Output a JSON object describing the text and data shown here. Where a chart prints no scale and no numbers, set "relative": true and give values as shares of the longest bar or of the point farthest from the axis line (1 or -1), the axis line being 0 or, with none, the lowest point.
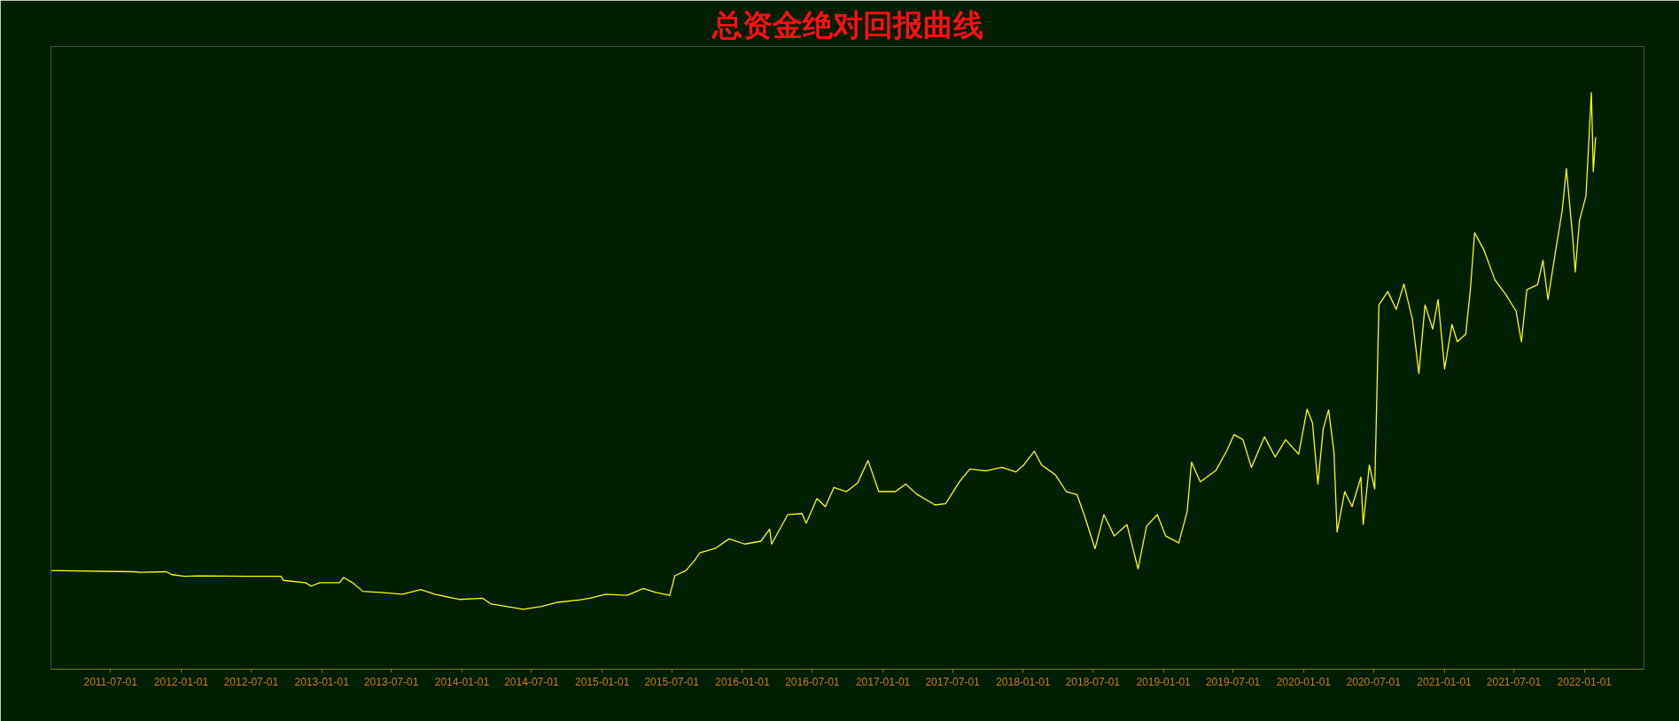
{
  "chart_data": {
    "type": "line",
    "title": "总资金绝对回报曲线",
    "relative": true,
    "xlim": [
      "2011-01-27",
      "2022-06-05"
    ],
    "xticks": [
      "2011-07-01",
      "2012-01-01",
      "2012-07-01",
      "2013-01-01",
      "2013-07-01",
      "2014-01-01",
      "2014-07-01",
      "2015-01-01",
      "2015-07-01",
      "2016-01-01",
      "2016-07-01",
      "2017-01-01",
      "2017-07-01",
      "2018-01-01",
      "2018-07-01",
      "2019-01-01",
      "2019-07-01",
      "2020-01-01",
      "2020-07-01",
      "2021-01-01",
      "2021-07-01",
      "2022-01-01"
    ],
    "x": [
      "2011-01-27",
      "2011-09-01",
      "2011-09-16",
      "2011-11-23",
      "2011-12-08",
      "2012-01-10",
      "2012-02-16",
      "2012-06-20",
      "2012-09-17",
      "2012-09-23",
      "2012-11-20",
      "2012-12-04",
      "2012-12-27",
      "2013-02-16",
      "2013-02-27",
      "2013-03-22",
      "2013-04-18",
      "2013-06-04",
      "2013-07-30",
      "2013-09-16",
      "2013-10-22",
      "2013-12-25",
      "2014-02-24",
      "2014-03-18",
      "2014-06-10",
      "2014-07-27",
      "2014-09-07",
      "2014-11-02",
      "2014-11-30",
      "2015-01-10",
      "2015-03-07",
      "2015-04-18",
      "2015-05-21",
      "2015-06-26",
      "2015-07-09",
      "2015-08-07",
      "2015-08-29",
      "2015-09-12",
      "2015-10-24",
      "2015-11-27",
      "2016-01-07",
      "2016-02-18",
      "2016-03-12",
      "2016-03-17",
      "2016-04-28",
      "2016-06-04",
      "2016-06-15",
      "2016-07-13",
      "2016-08-04",
      "2016-08-26",
      "2016-09-28",
      "2016-10-27",
      "2016-11-23",
      "2016-12-21",
      "2017-02-02",
      "2017-03-01",
      "2017-03-29",
      "2017-05-16",
      "2017-06-13",
      "2017-07-19",
      "2017-08-15",
      "2017-09-26",
      "2017-11-07",
      "2017-12-13",
      "2018-01-02",
      "2018-01-30",
      "2018-02-18",
      "2018-03-26",
      "2018-04-23",
      "2018-05-21",
      "2018-06-10",
      "2018-07-07",
      "2018-07-30",
      "2018-08-26",
      "2018-09-28",
      "2018-10-27",
      "2018-11-18",
      "2018-12-16",
      "2019-01-07",
      "2019-02-10",
      "2019-03-04",
      "2019-03-15",
      "2019-04-07",
      "2019-05-18",
      "2019-06-15",
      "2019-07-04",
      "2019-07-27",
      "2019-08-18",
      "2019-09-21",
      "2019-10-19",
      "2019-11-15",
      "2019-12-19",
      "2020-01-10",
      "2020-01-24",
      "2020-02-07",
      "2020-02-21",
      "2020-03-06",
      "2020-03-20",
      "2020-03-28",
      "2020-04-17",
      "2020-05-06",
      "2020-05-29",
      "2020-06-04",
      "2020-06-20",
      "2020-07-04",
      "2020-07-15",
      "2020-08-07",
      "2020-08-29",
      "2020-09-18",
      "2020-10-10",
      "2020-10-27",
      "2020-11-12",
      "2020-12-02",
      "2020-12-16",
      "2021-01-02",
      "2021-01-21",
      "2021-02-04",
      "2021-02-26",
      "2021-03-10",
      "2021-03-21",
      "2021-04-15",
      "2021-05-13",
      "2021-06-10",
      "2021-07-07",
      "2021-07-21",
      "2021-08-04",
      "2021-09-01",
      "2021-09-15",
      "2021-09-28",
      "2021-10-18",
      "2021-11-04",
      "2021-11-15",
      "2021-12-02",
      "2021-12-08",
      "2021-12-19",
      "2022-01-05",
      "2022-01-19",
      "2022-01-24",
      "2022-01-30"
    ],
    "series": [
      {
        "color": "#ffff00",
        "values": [
          0.171,
          0.169,
          0.168,
          0.169,
          0.164,
          0.161,
          0.162,
          0.161,
          0.161,
          0.154,
          0.15,
          0.144,
          0.15,
          0.15,
          0.159,
          0.15,
          0.135,
          0.133,
          0.13,
          0.138,
          0.13,
          0.121,
          0.123,
          0.113,
          0.104,
          0.109,
          0.116,
          0.12,
          0.123,
          0.13,
          0.128,
          0.14,
          0.133,
          0.128,
          0.162,
          0.171,
          0.188,
          0.202,
          0.21,
          0.226,
          0.217,
          0.222,
          0.243,
          0.217,
          0.268,
          0.27,
          0.253,
          0.296,
          0.282,
          0.315,
          0.308,
          0.323,
          0.362,
          0.308,
          0.308,
          0.321,
          0.304,
          0.285,
          0.287,
          0.325,
          0.347,
          0.344,
          0.35,
          0.342,
          0.354,
          0.378,
          0.354,
          0.337,
          0.308,
          0.303,
          0.265,
          0.209,
          0.268,
          0.231,
          0.251,
          0.174,
          0.248,
          0.268,
          0.231,
          0.219,
          0.274,
          0.359,
          0.325,
          0.345,
          0.379,
          0.407,
          0.398,
          0.35,
          0.403,
          0.368,
          0.398,
          0.373,
          0.451,
          0.427,
          0.321,
          0.417,
          0.45,
          0.376,
          0.238,
          0.308,
          0.282,
          0.333,
          0.251,
          0.354,
          0.313,
          0.632,
          0.655,
          0.624,
          0.668,
          0.607,
          0.513,
          0.632,
          0.59,
          0.641,
          0.521,
          0.598,
          0.568,
          0.581,
          0.658,
          0.757,
          0.726,
          0.675,
          0.65,
          0.621,
          0.568,
          0.658,
          0.667,
          0.709,
          0.641,
          0.726,
          0.795,
          0.868,
          0.744,
          0.689,
          0.778,
          0.821,
          1.0,
          0.863,
          0.923
        ]
      }
    ]
  }
}
